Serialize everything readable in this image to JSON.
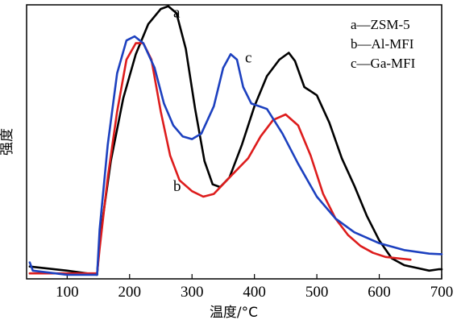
{
  "chart_data": {
    "type": "line",
    "title": "",
    "xlabel": "温度/°C",
    "ylabel": "强度",
    "xlim": [
      35,
      700
    ],
    "ylim": [
      0,
      1
    ],
    "xticks": [
      100,
      200,
      300,
      400,
      500,
      600,
      700
    ],
    "yticks": [],
    "grid": false,
    "legend": {
      "placement": "top-right",
      "entries": [
        "a—ZSM-5",
        "b—Al-MFI",
        "c—Ga-MFI"
      ]
    },
    "series": [
      {
        "name": "a",
        "color": "#000000",
        "points": [
          [
            40,
            0.045
          ],
          [
            100,
            0.03
          ],
          [
            148,
            0.015
          ],
          [
            152,
            0.14
          ],
          [
            170,
            0.43
          ],
          [
            190,
            0.66
          ],
          [
            210,
            0.82
          ],
          [
            230,
            0.93
          ],
          [
            250,
            0.985
          ],
          [
            262,
            0.995
          ],
          [
            275,
            0.97
          ],
          [
            290,
            0.84
          ],
          [
            305,
            0.62
          ],
          [
            320,
            0.43
          ],
          [
            333,
            0.345
          ],
          [
            345,
            0.335
          ],
          [
            360,
            0.37
          ],
          [
            380,
            0.49
          ],
          [
            400,
            0.63
          ],
          [
            420,
            0.74
          ],
          [
            440,
            0.8
          ],
          [
            455,
            0.825
          ],
          [
            465,
            0.795
          ],
          [
            480,
            0.7
          ],
          [
            500,
            0.67
          ],
          [
            520,
            0.57
          ],
          [
            540,
            0.44
          ],
          [
            560,
            0.34
          ],
          [
            580,
            0.23
          ],
          [
            600,
            0.14
          ],
          [
            620,
            0.075
          ],
          [
            640,
            0.05
          ],
          [
            660,
            0.04
          ],
          [
            680,
            0.03
          ],
          [
            695,
            0.035
          ],
          [
            700,
            0.035
          ]
        ]
      },
      {
        "name": "b",
        "color": "#dd1c1c",
        "points": [
          [
            40,
            0.02
          ],
          [
            100,
            0.02
          ],
          [
            148,
            0.02
          ],
          [
            152,
            0.11
          ],
          [
            165,
            0.37
          ],
          [
            180,
            0.61
          ],
          [
            195,
            0.8
          ],
          [
            210,
            0.86
          ],
          [
            222,
            0.86
          ],
          [
            235,
            0.8
          ],
          [
            250,
            0.61
          ],
          [
            265,
            0.45
          ],
          [
            280,
            0.36
          ],
          [
            300,
            0.32
          ],
          [
            318,
            0.3
          ],
          [
            335,
            0.31
          ],
          [
            360,
            0.37
          ],
          [
            390,
            0.44
          ],
          [
            410,
            0.52
          ],
          [
            430,
            0.58
          ],
          [
            450,
            0.6
          ],
          [
            470,
            0.56
          ],
          [
            490,
            0.45
          ],
          [
            510,
            0.31
          ],
          [
            530,
            0.22
          ],
          [
            550,
            0.16
          ],
          [
            570,
            0.12
          ],
          [
            590,
            0.095
          ],
          [
            610,
            0.08
          ],
          [
            630,
            0.075
          ],
          [
            650,
            0.07
          ]
        ]
      },
      {
        "name": "c",
        "color": "#1c40bf",
        "points": [
          [
            40,
            0.06
          ],
          [
            45,
            0.03
          ],
          [
            100,
            0.015
          ],
          [
            148,
            0.015
          ],
          [
            152,
            0.18
          ],
          [
            165,
            0.49
          ],
          [
            180,
            0.75
          ],
          [
            195,
            0.87
          ],
          [
            208,
            0.885
          ],
          [
            222,
            0.86
          ],
          [
            240,
            0.77
          ],
          [
            255,
            0.64
          ],
          [
            270,
            0.56
          ],
          [
            285,
            0.52
          ],
          [
            300,
            0.51
          ],
          [
            315,
            0.53
          ],
          [
            335,
            0.63
          ],
          [
            350,
            0.77
          ],
          [
            362,
            0.82
          ],
          [
            372,
            0.8
          ],
          [
            382,
            0.7
          ],
          [
            395,
            0.64
          ],
          [
            420,
            0.62
          ],
          [
            445,
            0.53
          ],
          [
            470,
            0.42
          ],
          [
            500,
            0.3
          ],
          [
            530,
            0.22
          ],
          [
            560,
            0.17
          ],
          [
            600,
            0.13
          ],
          [
            640,
            0.105
          ],
          [
            680,
            0.092
          ],
          [
            700,
            0.09
          ]
        ]
      }
    ],
    "annotations": [
      {
        "text": "a",
        "x": 270,
        "y": 0.955
      },
      {
        "text": "b",
        "x": 270,
        "y": 0.32
      },
      {
        "text": "c",
        "x": 385,
        "y": 0.79
      }
    ]
  }
}
